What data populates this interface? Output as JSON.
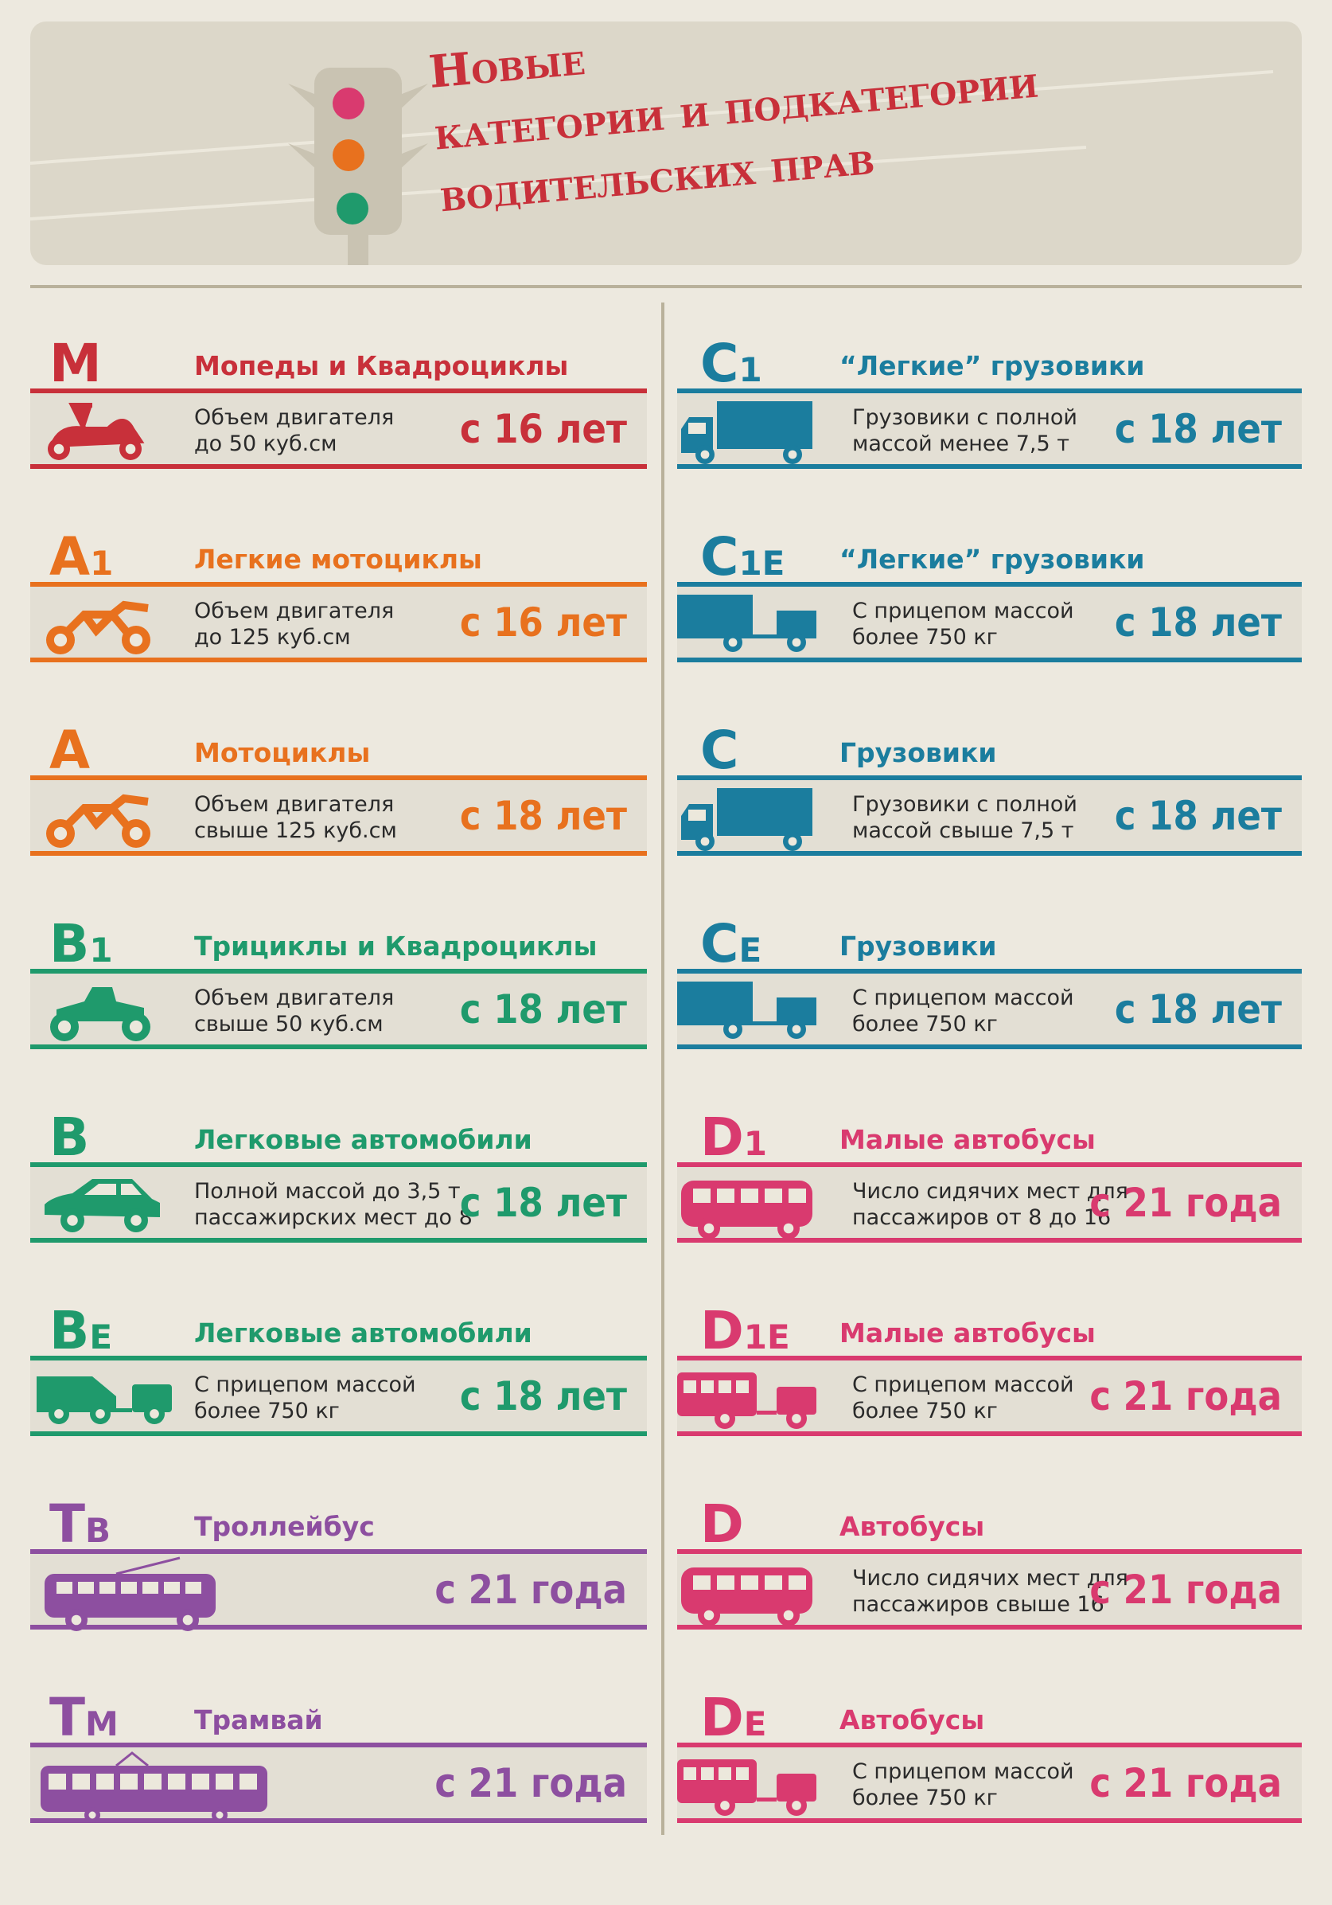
{
  "header": {
    "title": [
      "Новые",
      "категории и подкатегории",
      "водительских прав"
    ]
  },
  "columns": [
    {
      "items": [
        {
          "code": "M",
          "sub": "",
          "title": "Мопеды и Квадроциклы",
          "description": [
            "Объем двигателя",
            "до 50 куб.см"
          ],
          "age": "с 16 лет",
          "color": "#c8303a"
        },
        {
          "code": "A",
          "sub": "1",
          "title": "Легкие мотоциклы",
          "description": [
            "Объем двигателя",
            "до 125 куб.см"
          ],
          "age": "с 16 лет",
          "color": "#e8711e"
        },
        {
          "code": "A",
          "sub": "",
          "title": "Мотоциклы",
          "description": [
            "Объем двигателя",
            "свыше 125 куб.см"
          ],
          "age": "с 18 лет",
          "color": "#e8711e"
        },
        {
          "code": "B",
          "sub": "1",
          "title": "Трициклы и Квадроциклы",
          "description": [
            "Объем двигателя",
            "свыше 50 куб.см"
          ],
          "age": "с 18 лет",
          "color": "#1f9a6c"
        },
        {
          "code": "B",
          "sub": "",
          "title": "Легковые автомобили",
          "description": [
            "Полной массой до 3,5 т ,",
            "пассажирских мест до 8"
          ],
          "age": "с 18 лет",
          "color": "#1f9a6c"
        },
        {
          "code": "B",
          "sub": "E",
          "title": "Легковые автомобили",
          "description": [
            "С прицепом массой",
            "более 750 кг"
          ],
          "age": "с 18 лет",
          "color": "#1f9a6c"
        },
        {
          "code": "T",
          "sub": "B",
          "title": "Троллейбус",
          "description": [],
          "age": "с 21 года",
          "color": "#8d4fa0"
        },
        {
          "code": "T",
          "sub": "M",
          "title": "Трамвай",
          "description": [],
          "age": "с 21 года",
          "color": "#8d4fa0"
        }
      ]
    },
    {
      "items": [
        {
          "code": "C",
          "sub": "1",
          "title": "“Легкие” грузовики",
          "description": [
            "Грузовики с полной",
            "массой менее 7,5 т"
          ],
          "age": "с 18 лет",
          "color": "#1b7d9e"
        },
        {
          "code": "C",
          "sub": "1E",
          "title": "“Легкие” грузовики",
          "description": [
            "С прицепом массой",
            "более 750 кг"
          ],
          "age": "с 18 лет",
          "color": "#1b7d9e"
        },
        {
          "code": "C",
          "sub": "",
          "title": "Грузовики",
          "description": [
            "Грузовики с полной",
            "массой свыше 7,5 т"
          ],
          "age": "с 18 лет",
          "color": "#1b7d9e"
        },
        {
          "code": "C",
          "sub": "E",
          "title": "Грузовики",
          "description": [
            "С прицепом массой",
            "более 750 кг"
          ],
          "age": "с 18 лет",
          "color": "#1b7d9e"
        },
        {
          "code": "D",
          "sub": "1",
          "title": "Малые автобусы",
          "description": [
            "Число сидячих мест для",
            "пассажиров от 8 до 16"
          ],
          "age": "с 21 года",
          "color": "#d93a6f"
        },
        {
          "code": "D",
          "sub": "1E",
          "title": "Малые автобусы",
          "description": [
            "С прицепом массой",
            "более 750 кг"
          ],
          "age": "с 21 года",
          "color": "#d93a6f"
        },
        {
          "code": "D",
          "sub": "",
          "title": "Автобусы",
          "description": [
            "Число сидячих мест для",
            "пассажиров свыше 16"
          ],
          "age": "с 21 года",
          "color": "#d93a6f"
        },
        {
          "code": "D",
          "sub": "E",
          "title": "Автобусы",
          "description": [
            "С прицепом массой",
            "более 750 кг"
          ],
          "age": "с 21 года",
          "color": "#d93a6f"
        }
      ]
    }
  ]
}
